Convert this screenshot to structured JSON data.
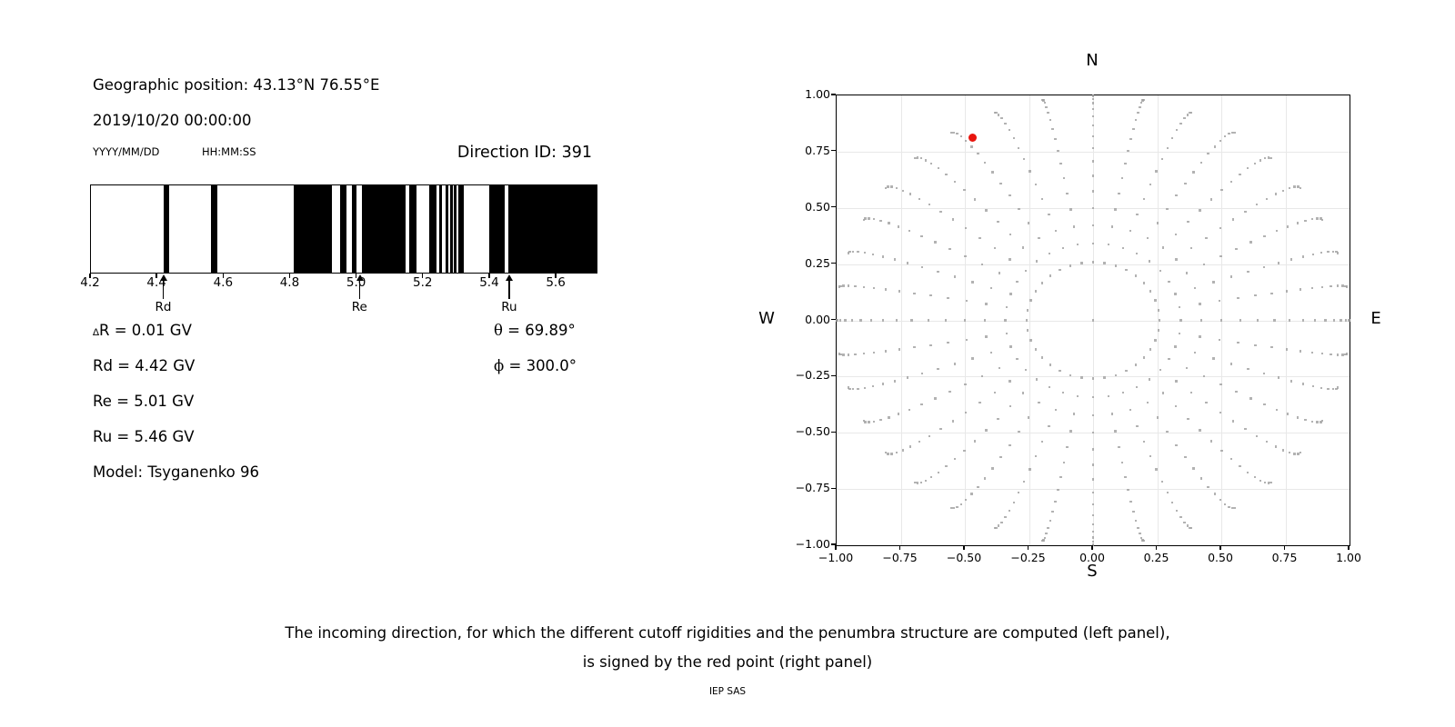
{
  "info_panel": {
    "geo_position": "Geographic position: 43.13°N 76.55°E",
    "datetime": "2019/10/20 00:00:00",
    "date_format_label": "YYYY/MM/DD",
    "time_format_label": "HH:MM:SS",
    "direction_id": "Direction ID: 391",
    "values": {
      "delta_symbol": "∆",
      "delta_r_rest": "R = 0.01 GV",
      "rd": "Rd = 4.42 GV",
      "re": "Re = 5.01 GV",
      "ru": "Ru = 5.46 GV",
      "model": "Model: Tsyganenko 96",
      "theta_symbol": "θ",
      "theta_rest": " = 69.89°",
      "phi_symbol": "ϕ",
      "phi_rest": " = 300.0°"
    }
  },
  "chart_data": [
    {
      "type": "bar",
      "name": "penumbra-structure",
      "description": "Penumbra barcode: black = forbidden rigidity bands, white = allowed",
      "x_range": [
        4.2,
        5.72
      ],
      "x_ticks": [
        4.2,
        4.4,
        4.6,
        4.8,
        5.0,
        5.2,
        5.4,
        5.6
      ],
      "bar_color": "#000000",
      "forbidden_intervals_gv": [
        [
          4.42,
          4.436
        ],
        [
          4.56,
          4.581
        ],
        [
          4.81,
          4.925
        ],
        [
          4.95,
          4.968
        ],
        [
          4.985,
          4.998
        ],
        [
          5.015,
          5.145
        ],
        [
          5.157,
          5.178
        ],
        [
          5.218,
          5.24
        ],
        [
          5.247,
          5.255
        ],
        [
          5.265,
          5.274
        ],
        [
          5.279,
          5.288
        ],
        [
          5.291,
          5.3
        ],
        [
          5.305,
          5.32
        ],
        [
          5.398,
          5.443
        ],
        [
          5.454,
          5.72
        ]
      ],
      "markers": [
        {
          "label": "Rd",
          "value_gv": 4.42
        },
        {
          "label": "Re",
          "value_gv": 5.01
        },
        {
          "label": "Ru",
          "value_gv": 5.46
        }
      ]
    },
    {
      "type": "scatter",
      "name": "incoming-directions",
      "xlim": [
        -1,
        1
      ],
      "ylim": [
        -1,
        1
      ],
      "x_ticks": [
        "−1.00",
        "−0.75",
        "−0.50",
        "−0.25",
        "0.00",
        "0.25",
        "0.50",
        "0.75",
        "1.00"
      ],
      "y_ticks": [
        "1.00",
        "0.75",
        "0.50",
        "0.25",
        "0.00",
        "−0.25",
        "−0.50",
        "−0.75",
        "−1.00"
      ],
      "direction_labels": {
        "top": "N",
        "bottom": "S",
        "left": "W",
        "right": "E"
      },
      "grid": true,
      "dot_color": "#9f9f9f",
      "red_color": "#e8150e",
      "spokes": {
        "azimuth_deg_start": 0,
        "azimuth_deg_step": 10,
        "azimuth_count": 36,
        "zenith_deg_start": 15,
        "zenith_deg_step": 5,
        "zenith_count": 16,
        "radius_rule": "sin(zenith)",
        "curvature_deg": 4
      },
      "center_dot": {
        "x": 0,
        "y": 0
      },
      "red_point": {
        "x": -0.4698,
        "y": 0.8138,
        "zenith_deg": 69.89,
        "azimuth_deg": 300.0
      }
    }
  ],
  "caption": {
    "line1": "The incoming direction, for which the different cutoff rigidities and the penumbra structure are computed (left panel),",
    "line2": "is signed by the red point (right panel)",
    "credit": "IEP SAS"
  }
}
